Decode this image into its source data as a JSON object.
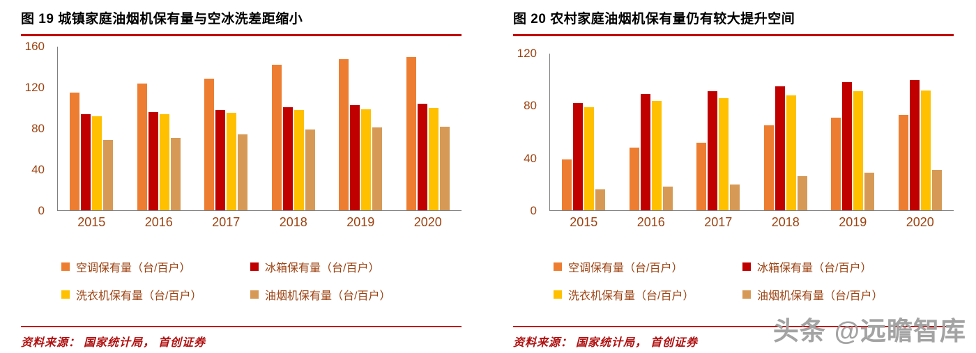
{
  "colors": {
    "accent_rule": "#C00000",
    "axis_text": "#9C4211",
    "legend_text": "#9C4211",
    "source_text": "#B01010",
    "watermark": "#A3A3A3",
    "axis_line": "#7F7F7F"
  },
  "watermark": {
    "brand": "头条",
    "handle": "@远瞻智库"
  },
  "figures": [
    {
      "source_note": "资料来源：  国家统计局，  首创证券"
    },
    {
      "source_note": "资料来源：  国家统计局，  首创证券"
    }
  ],
  "chart_data": [
    {
      "type": "bar",
      "title": "图  19  城镇家庭油烟机保有量与空冰洗差距缩小",
      "categories": [
        "2015",
        "2016",
        "2017",
        "2018",
        "2019",
        "2020"
      ],
      "series": [
        {
          "name": "空调保有量（台/百户）",
          "color": "#ED7D31",
          "values": [
            115,
            124,
            129,
            142,
            148,
            150
          ]
        },
        {
          "name": "冰箱保有量（台/百户）",
          "color": "#C00000",
          "values": [
            94,
            96,
            98,
            101,
            103,
            104
          ]
        },
        {
          "name": "洗衣机保有量（台/百户）",
          "color": "#FFC000",
          "values": [
            92,
            94,
            95,
            98,
            99,
            100
          ]
        },
        {
          "name": "油烟机保有量（台/百户）",
          "color": "#D69A56",
          "values": [
            69,
            71,
            74,
            79,
            81,
            82
          ]
        }
      ],
      "ylim": [
        0,
        160
      ],
      "ytick_step": 40,
      "grid": false,
      "legend_position": "bottom"
    },
    {
      "type": "bar",
      "title": "图  20  农村家庭油烟机保有量仍有较大提升空间",
      "categories": [
        "2015",
        "2016",
        "2017",
        "2018",
        "2019",
        "2020"
      ],
      "series": [
        {
          "name": "空调保有量（台/百户）",
          "color": "#ED7D31",
          "values": [
            39,
            48,
            52,
            65,
            71,
            73
          ]
        },
        {
          "name": "冰箱保有量（台/百户）",
          "color": "#C00000",
          "values": [
            82,
            89,
            91,
            95,
            98,
            100
          ]
        },
        {
          "name": "洗衣机保有量（台/百户）",
          "color": "#FFC000",
          "values": [
            79,
            84,
            86,
            88,
            91,
            92
          ]
        },
        {
          "name": "油烟机保有量（台/百户）",
          "color": "#D69A56",
          "values": [
            16,
            18,
            20,
            26,
            29,
            31
          ]
        }
      ],
      "ylim": [
        0,
        120
      ],
      "ytick_step": 40,
      "grid": false,
      "legend_position": "bottom"
    }
  ]
}
